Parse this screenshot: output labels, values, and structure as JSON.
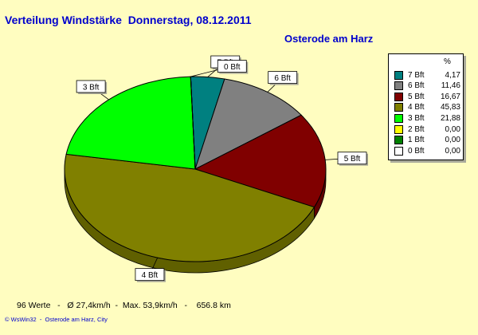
{
  "chart_data": {
    "type": "pie",
    "title": "Verteilung Windstärke  Donnerstag, 08.12.2011",
    "subtitle": "Osterode am Harz",
    "legend_header": "%",
    "slices": [
      {
        "label": "7 Bft",
        "value": 4.17,
        "value_text": "4,17",
        "color": "#008080"
      },
      {
        "label": "6 Bft",
        "value": 11.46,
        "value_text": "11,46",
        "color": "#808080"
      },
      {
        "label": "5 Bft",
        "value": 16.67,
        "value_text": "16,67",
        "color": "#800000"
      },
      {
        "label": "4 Bft",
        "value": 45.83,
        "value_text": "45,83",
        "color": "#808000"
      },
      {
        "label": "3 Bft",
        "value": 21.88,
        "value_text": "21,88",
        "color": "#00ff00"
      },
      {
        "label": "2 Bft",
        "value": 0.0,
        "value_text": "0,00",
        "color": "#ffff00"
      },
      {
        "label": "1 Bft",
        "value": 0.0,
        "value_text": "0,00",
        "color": "#008000"
      },
      {
        "label": "0 Bft",
        "value": 0.0,
        "value_text": "0,00",
        "color": "#ffffff"
      }
    ],
    "legend_placement": "right"
  },
  "footer": {
    "stats": "96 Werte   -   Ø 27,4km/h  -  Max. 53,9km/h   -    656.8 km",
    "credit": "© WsWin32  -  Osterode am Harz, City"
  }
}
